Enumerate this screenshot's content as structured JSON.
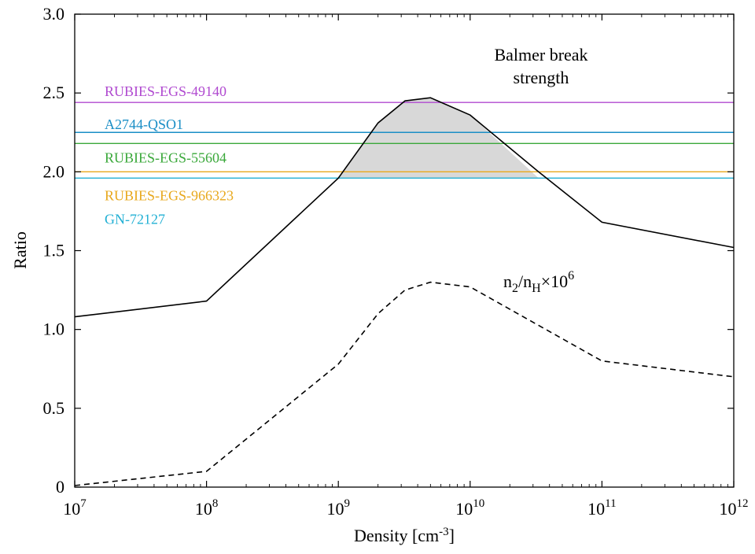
{
  "chart_data": {
    "type": "line",
    "xscale": "log",
    "xlim": [
      10000000.0,
      1000000000000.0
    ],
    "ylim": [
      0,
      3.0
    ],
    "xlabel": "Density [cm",
    "xlabel_sup": "-3",
    "xlabel_end": "]",
    "ylabel": "Ratio",
    "grid": false,
    "x_ticks": [
      {
        "value": 10000000.0,
        "base": "10",
        "exp": "7"
      },
      {
        "value": 100000000.0,
        "base": "10",
        "exp": "8"
      },
      {
        "value": 1000000000.0,
        "base": "10",
        "exp": "9"
      },
      {
        "value": 10000000000.0,
        "base": "10",
        "exp": "10"
      },
      {
        "value": 100000000000.0,
        "base": "10",
        "exp": "11"
      },
      {
        "value": 1000000000000.0,
        "base": "10",
        "exp": "12"
      }
    ],
    "y_ticks": [
      {
        "value": 0,
        "label": "0"
      },
      {
        "value": 0.5,
        "label": "0.5"
      },
      {
        "value": 1.0,
        "label": "1.0"
      },
      {
        "value": 1.5,
        "label": "1.5"
      },
      {
        "value": 2.0,
        "label": "2.0"
      },
      {
        "value": 2.5,
        "label": "2.5"
      },
      {
        "value": 3.0,
        "label": "3.0"
      }
    ],
    "series": [
      {
        "name": "Balmer break strength",
        "style": "solid",
        "color": "#000000",
        "x": [
          10000000.0,
          100000000.0,
          1000000000.0,
          2000000000.0,
          3200000000.0,
          5000000000.0,
          10000000000.0,
          33000000000.0,
          100000000000.0,
          1000000000000.0
        ],
        "y": [
          1.08,
          1.18,
          1.96,
          2.31,
          2.45,
          2.47,
          2.36,
          2.0,
          1.68,
          1.52
        ]
      },
      {
        "name": "n2/nH x10^6",
        "style": "dashed",
        "color": "#000000",
        "x": [
          10000000.0,
          100000000.0,
          1000000000.0,
          2000000000.0,
          3200000000.0,
          5000000000.0,
          10000000000.0,
          100000000000.0,
          1000000000000.0
        ],
        "y": [
          0.01,
          0.1,
          0.78,
          1.1,
          1.25,
          1.3,
          1.27,
          0.8,
          0.7
        ]
      }
    ],
    "shaded_region": {
      "x": [
        1000000000.0,
        2000000000.0,
        3200000000.0,
        5000000000.0,
        10000000000.0,
        33000000000.0
      ],
      "y": [
        1.96,
        2.31,
        2.45,
        2.47,
        2.36,
        1.96
      ],
      "color": "#d8d8d8"
    },
    "reference_lines": [
      {
        "label": "RUBIES-EGS-49140",
        "y": 2.44,
        "color": "#b04ad0",
        "label_y": 2.51
      },
      {
        "label": "A2744-QSO1",
        "y": 2.25,
        "color": "#1a8ec6",
        "label_y": 2.3
      },
      {
        "label": "RUBIES-EGS-55604",
        "y": 2.18,
        "color": "#3aa83a",
        "label_y": 2.09
      },
      {
        "label": "RUBIES-EGS-966323",
        "y": 2.0,
        "color": "#e8a81c",
        "label_y": 1.85
      },
      {
        "label": "GN-72127",
        "y": 1.96,
        "color": "#22b0d4",
        "label_y": 1.7
      }
    ],
    "annotations": {
      "balmer_line1": "Balmer break",
      "balmer_line2": "strength",
      "ratio_n": "n",
      "ratio_sub2": "2",
      "ratio_slash": "/n",
      "ratio_subH": "H",
      "ratio_times": "×10",
      "ratio_exp": "6"
    }
  }
}
